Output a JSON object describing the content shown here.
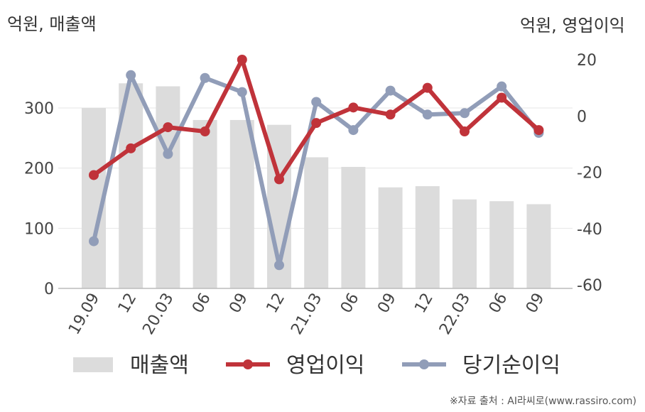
{
  "chart_data": {
    "type": "bar",
    "categories": [
      "19.09",
      "12",
      "20.03",
      "06",
      "09",
      "12",
      "21.03",
      "06",
      "09",
      "12",
      "22.03",
      "06",
      "09"
    ],
    "left_axis_title": "억원, 매출액",
    "right_axis_title": "억원, 영업이익",
    "left_ylim": [
      0,
      380
    ],
    "left_yticks": [
      "0",
      "100",
      "200",
      "300"
    ],
    "right_ylim": [
      -60,
      20
    ],
    "right_yticks": [
      "-60",
      "-40",
      "-20",
      "0",
      "20"
    ],
    "grid": true,
    "legend_position": "bottom",
    "series": [
      {
        "name": "매출액",
        "type": "bar",
        "axis": "left",
        "color": "#dcdcdc",
        "values": [
          300,
          341,
          336,
          280,
          280,
          272,
          218,
          202,
          168,
          170,
          148,
          145,
          140
        ]
      },
      {
        "name": "영업이익",
        "type": "line",
        "axis": "right",
        "color": "#c0333a",
        "values": [
          -21,
          -11.5,
          -4,
          -5.5,
          20,
          -22.5,
          -2.5,
          3,
          0.5,
          10,
          -5.5,
          6.5,
          -5
        ]
      },
      {
        "name": "당기순이익",
        "type": "line",
        "axis": "right",
        "color": "#919db8",
        "values": [
          -44.5,
          14.5,
          -13.5,
          13.5,
          8.5,
          -53,
          5,
          -5,
          9,
          0.5,
          1,
          10.5,
          -6
        ]
      }
    ]
  },
  "source": "※자료 출처 : AI라씨로(www.rassiro.com)"
}
